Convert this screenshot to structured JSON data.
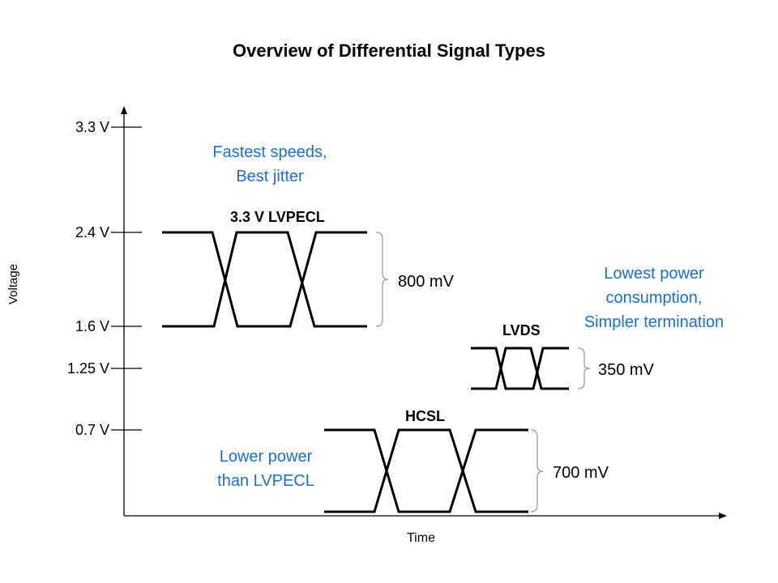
{
  "title": "Overview of Differential Signal Types",
  "axes": {
    "y_label": "Voltage",
    "x_label": "Time"
  },
  "y_ticks": [
    "3.3 V",
    "2.4 V",
    "1.6 V",
    "1.25 V",
    "0.7 V"
  ],
  "signals": [
    {
      "name": "3.3 V LVPECL",
      "swing": "800 mV",
      "note": [
        "Fastest speeds,",
        "Best jitter"
      ]
    },
    {
      "name": "LVDS",
      "swing": "350 mV",
      "note": [
        "Lowest power",
        "consumption,",
        "Simpler termination"
      ]
    },
    {
      "name": "HCSL",
      "swing": "700 mV",
      "note": [
        "Lower power",
        "than LVPECL"
      ]
    }
  ],
  "colors": {
    "note": "#1a6fd4",
    "bracket": "#a6a6a6",
    "line": "#000000"
  }
}
